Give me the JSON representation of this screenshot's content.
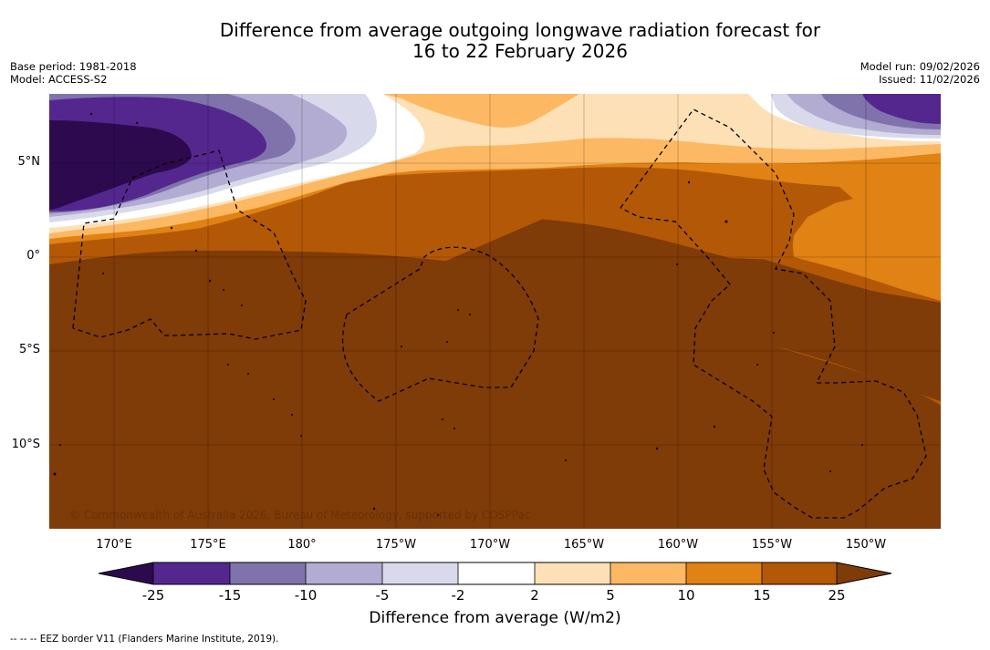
{
  "title": {
    "line1": "Difference from average outgoing longwave radiation forecast for",
    "line2": "16 to 22 February 2026"
  },
  "meta": {
    "base_period": "Base period: 1981-2018",
    "model": "Model: ACCESS-S2",
    "model_run": "Model run: 09/02/2026",
    "issued": "Issued: 11/02/2026"
  },
  "map": {
    "longitude_labels": [
      "170°E",
      "175°E",
      "180°",
      "175°W",
      "170°W",
      "165°W",
      "160°W",
      "155°W",
      "150°W"
    ],
    "latitude_labels": [
      "5°N",
      "0°",
      "5°S",
      "10°S"
    ],
    "copyright": "© Commonwealth of Australia 2026, Bureau of Meteorology, supported by COSPPac"
  },
  "colorbar": {
    "title": "Difference from average (W/m2)",
    "ticks": [
      "-25",
      "-15",
      "-10",
      "-5",
      "-2",
      "2",
      "5",
      "10",
      "15",
      "25"
    ],
    "colors": [
      "#2d0a4e",
      "#54278f",
      "#8073ac",
      "#b2abd2",
      "#d8daeb",
      "#ffffff",
      "#fee0b6",
      "#fdb863",
      "#e08214",
      "#b35806",
      "#7f3b08"
    ]
  },
  "footnote": "--  --  -- EEZ border V11 (Flanders Marine Institute, 2019)."
}
